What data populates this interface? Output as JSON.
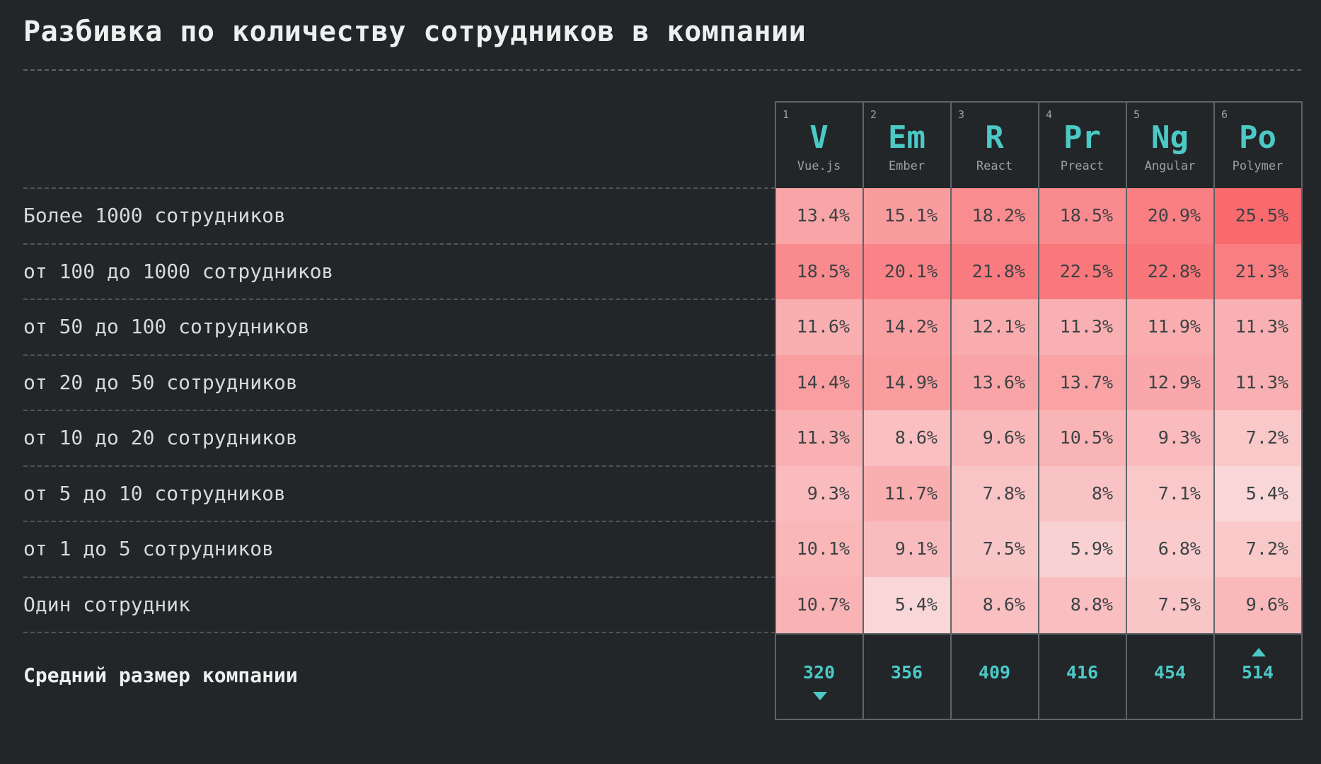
{
  "title": "Разбивка по количеству сотрудников в компании",
  "columns": [
    {
      "rank": "1",
      "symbol": "V",
      "name": "Vue.js"
    },
    {
      "rank": "2",
      "symbol": "Em",
      "name": "Ember"
    },
    {
      "rank": "3",
      "symbol": "R",
      "name": "React"
    },
    {
      "rank": "4",
      "symbol": "Pr",
      "name": "Preact"
    },
    {
      "rank": "5",
      "symbol": "Ng",
      "name": "Angular"
    },
    {
      "rank": "6",
      "symbol": "Po",
      "name": "Polymer"
    }
  ],
  "average": {
    "label": "Средний размер компании",
    "values": [
      "320",
      "356",
      "409",
      "416",
      "454",
      "514"
    ],
    "markers": [
      "down",
      "",
      "",
      "",
      "",
      "up"
    ]
  },
  "colors": {
    "background": "#222629",
    "accent": "#4cc9c6",
    "heat_low": "#f9d6d7",
    "heat_high": "#f96a6e"
  },
  "chart_data": {
    "type": "heatmap",
    "title": "Разбивка по количеству сотрудников в компании",
    "unit": "%",
    "columns": [
      "Vue.js",
      "Ember",
      "React",
      "Preact",
      "Angular",
      "Polymer"
    ],
    "rows": [
      {
        "label": "Более 1000 сотрудников",
        "values": [
          13.4,
          15.1,
          18.2,
          18.5,
          20.9,
          25.5
        ],
        "texts": [
          "13.4%",
          "15.1%",
          "18.2%",
          "18.5%",
          "20.9%",
          "25.5%"
        ]
      },
      {
        "label": "от 100 до 1000 сотрудников",
        "values": [
          18.5,
          20.1,
          21.8,
          22.5,
          22.8,
          21.3
        ],
        "texts": [
          "18.5%",
          "20.1%",
          "21.8%",
          "22.5%",
          "22.8%",
          "21.3%"
        ]
      },
      {
        "label": "от 50 до 100 сотрудников",
        "values": [
          11.6,
          14.2,
          12.1,
          11.3,
          11.9,
          11.3
        ],
        "texts": [
          "11.6%",
          "14.2%",
          "12.1%",
          "11.3%",
          "11.9%",
          "11.3%"
        ]
      },
      {
        "label": "от 20 до 50 сотрудников",
        "values": [
          14.4,
          14.9,
          13.6,
          13.7,
          12.9,
          11.3
        ],
        "texts": [
          "14.4%",
          "14.9%",
          "13.6%",
          "13.7%",
          "12.9%",
          "11.3%"
        ]
      },
      {
        "label": "от 10 до 20 сотрудников",
        "values": [
          11.3,
          8.6,
          9.6,
          10.5,
          9.3,
          7.2
        ],
        "texts": [
          "11.3%",
          "8.6%",
          "9.6%",
          "10.5%",
          "9.3%",
          "7.2%"
        ]
      },
      {
        "label": "от 5 до 10 сотрудников",
        "values": [
          9.3,
          11.7,
          7.8,
          8,
          7.1,
          5.4
        ],
        "texts": [
          "9.3%",
          "11.7%",
          "7.8%",
          "8%",
          "7.1%",
          "5.4%"
        ]
      },
      {
        "label": "от 1 до 5 сотрудников",
        "values": [
          10.1,
          9.1,
          7.5,
          5.9,
          6.8,
          7.2
        ],
        "texts": [
          "10.1%",
          "9.1%",
          "7.5%",
          "5.9%",
          "6.8%",
          "7.2%"
        ]
      },
      {
        "label": "Один сотрудник",
        "values": [
          10.7,
          5.4,
          8.6,
          8.8,
          7.5,
          9.6
        ],
        "texts": [
          "10.7%",
          "5.4%",
          "8.6%",
          "8.8%",
          "7.5%",
          "9.6%"
        ]
      }
    ],
    "summary_row": {
      "label": "Средний размер компании",
      "values": [
        320,
        356,
        409,
        416,
        454,
        514
      ]
    }
  }
}
